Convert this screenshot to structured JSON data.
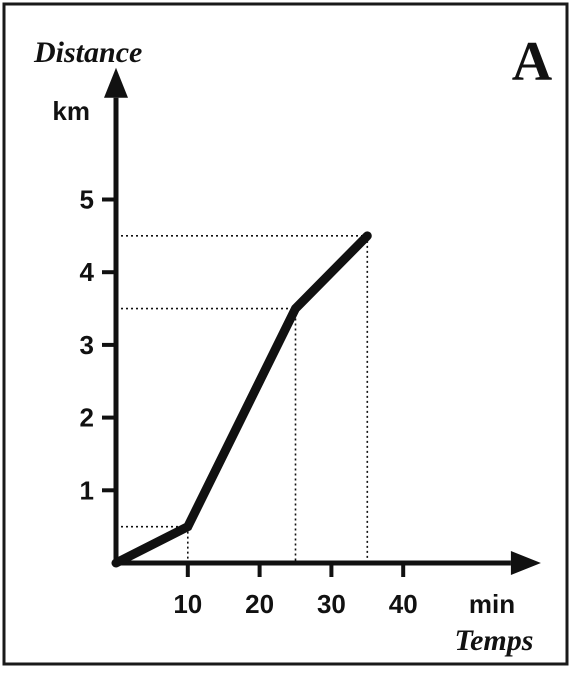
{
  "chart_data": {
    "type": "line",
    "panel_label": "A",
    "ylabel": "Distance",
    "y_unit": "km",
    "xlabel": "Temps",
    "x_unit": "min",
    "x_ticks": [
      10,
      20,
      30,
      40
    ],
    "y_ticks": [
      1,
      2,
      3,
      4,
      5
    ],
    "xlim": [
      0,
      55
    ],
    "ylim": [
      0,
      6.4
    ],
    "grid": false,
    "series": [
      {
        "x": [
          0,
          10,
          25,
          35
        ],
        "y": [
          0,
          0.5,
          3.5,
          4.5
        ],
        "color": "#111111"
      }
    ],
    "guide_lines": [
      {
        "x": 10,
        "y": 0.5
      },
      {
        "x": 25,
        "y": 3.5
      },
      {
        "x": 35,
        "y": 4.5
      }
    ]
  }
}
